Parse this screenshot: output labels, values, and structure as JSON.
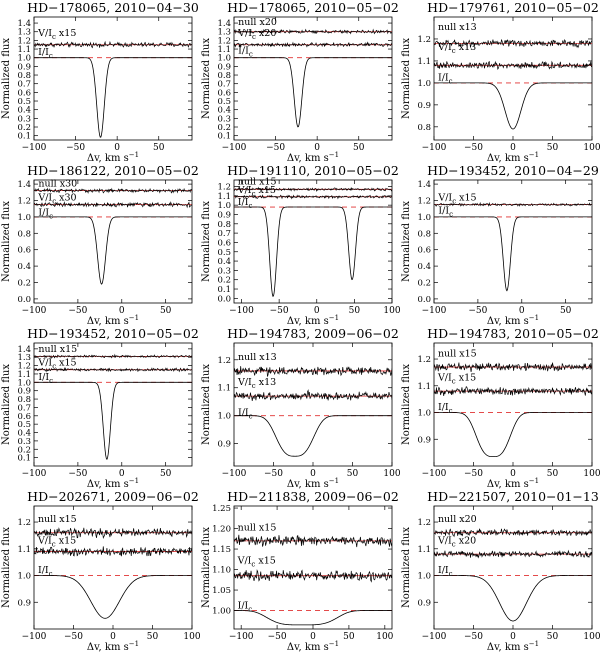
{
  "figure": {
    "ylabel": "Normalized flux",
    "xlabel_main": "Δv, km s",
    "xlabel_exp": "−1"
  },
  "chart_data": [
    {
      "type": "line",
      "title": "HD−178065, 2010−04−30",
      "xlim": [
        -100,
        90
      ],
      "ylim": [
        0.05,
        1.47
      ],
      "xticks": [
        -100,
        -50,
        0,
        50
      ],
      "yticks": [
        0.1,
        0.2,
        0.3,
        0.4,
        0.5,
        0.6,
        0.7,
        0.8,
        0.9,
        1.0,
        1.1,
        1.2,
        1.3,
        1.4
      ],
      "labels": [
        {
          "text": "V/I",
          "sub": "c",
          "suffix": " x15",
          "x": -95,
          "y": 1.25
        },
        {
          "text": "I/I",
          "sub": "c",
          "suffix": "",
          "x": -95,
          "y": 1.03
        }
      ],
      "series": [
        {
          "role": "stokesV",
          "level": 1.15,
          "noise": 0.022
        },
        {
          "role": "intensity",
          "continuum": 1.0,
          "center": -20,
          "depth": 0.92,
          "width": 4.5
        }
      ]
    },
    {
      "type": "line",
      "title": "HD−178065, 2010−05−02",
      "xlim": [
        -100,
        90
      ],
      "ylim": [
        0.05,
        1.47
      ],
      "xticks": [
        -100,
        -50,
        0,
        50
      ],
      "yticks": [
        0.1,
        0.2,
        0.3,
        0.4,
        0.5,
        0.6,
        0.7,
        0.8,
        0.9,
        1.0,
        1.1,
        1.2,
        1.3,
        1.4
      ],
      "labels": [
        {
          "text": "null x20",
          "sub": "",
          "suffix": "",
          "x": -95,
          "y": 1.38
        },
        {
          "text": "V/I",
          "sub": "c",
          "suffix": " x20",
          "x": -95,
          "y": 1.25
        },
        {
          "text": "I/I",
          "sub": "c",
          "suffix": "",
          "x": -95,
          "y": 1.05
        }
      ],
      "series": [
        {
          "role": "null",
          "level": 1.3,
          "noise": 0.016
        },
        {
          "role": "stokesV",
          "level": 1.15,
          "noise": 0.018
        },
        {
          "role": "intensity",
          "continuum": 1.0,
          "center": -23,
          "depth": 0.8,
          "width": 4.5
        }
      ]
    },
    {
      "type": "line",
      "title": "HD−179761, 2010−05−02",
      "xlim": [
        -100,
        100
      ],
      "ylim": [
        0.74,
        1.3
      ],
      "xticks": [
        -100,
        -50,
        0,
        50,
        100
      ],
      "yticks": [
        0.8,
        0.9,
        1.0,
        1.1,
        1.2
      ],
      "labels": [
        {
          "text": "null x13",
          "sub": "",
          "suffix": "",
          "x": -95,
          "y": 1.24
        },
        {
          "text": "V/I",
          "sub": "c",
          "suffix": " x13",
          "x": -95,
          "y": 1.15
        },
        {
          "text": "I/I",
          "sub": "c",
          "suffix": "",
          "x": -95,
          "y": 1.01
        }
      ],
      "series": [
        {
          "role": "null",
          "level": 1.18,
          "noise": 0.013
        },
        {
          "role": "stokesV",
          "level": 1.08,
          "noise": 0.014
        },
        {
          "role": "intensity",
          "continuum": 1.0,
          "center": 0,
          "depth": 0.21,
          "width": 10
        }
      ]
    },
    {
      "type": "line",
      "title": "HD−186122, 2010−05−02",
      "xlim": [
        -100,
        80
      ],
      "ylim": [
        -0.05,
        1.45
      ],
      "xticks": [
        -100,
        -50,
        0,
        50
      ],
      "yticks": [
        0.0,
        0.2,
        0.4,
        0.6,
        0.8,
        1.0,
        1.2,
        1.4
      ],
      "labels": [
        {
          "text": "null x30",
          "sub": "",
          "suffix": "",
          "x": -95,
          "y": 1.37
        },
        {
          "text": "V/I",
          "sub": "c",
          "suffix": " x30",
          "x": -95,
          "y": 1.2
        },
        {
          "text": "I/I",
          "sub": "c",
          "suffix": "",
          "x": -95,
          "y": 1.02
        }
      ],
      "series": [
        {
          "role": "null",
          "level": 1.32,
          "noise": 0.018
        },
        {
          "role": "stokesV",
          "level": 1.15,
          "noise": 0.02
        },
        {
          "role": "intensity",
          "continuum": 1.0,
          "center": -23,
          "depth": 0.82,
          "width": 4.5
        }
      ]
    },
    {
      "type": "line",
      "title": "HD−191110, 2010−05−02",
      "xlim": [
        -110,
        100
      ],
      "ylim": [
        -0.05,
        1.27
      ],
      "xticks": [
        -100,
        -50,
        0,
        50,
        100
      ],
      "yticks": [
        0.0,
        0.1,
        0.2,
        0.3,
        0.4,
        0.5,
        0.6,
        0.7,
        0.8,
        0.9,
        1.0,
        1.1,
        1.2
      ],
      "labels": [
        {
          "text": "null x15",
          "sub": "",
          "suffix": "",
          "x": -105,
          "y": 1.22
        },
        {
          "text": "V/I",
          "sub": "c",
          "suffix": " x15",
          "x": -105,
          "y": 1.13
        },
        {
          "text": "I/I",
          "sub": "c",
          "suffix": "",
          "x": -105,
          "y": 1.0
        }
      ],
      "series": [
        {
          "role": "null",
          "level": 1.17,
          "noise": 0.012
        },
        {
          "role": "stokesV",
          "level": 1.09,
          "noise": 0.012
        },
        {
          "role": "intensity",
          "continuum": 0.98,
          "center": -58,
          "depth": 0.96,
          "width": 4.5,
          "center2": 47,
          "depth2": 0.78,
          "width2": 4.5
        }
      ]
    },
    {
      "type": "line",
      "title": "HD−193452, 2010−04−29",
      "xlim": [
        -100,
        80
      ],
      "ylim": [
        -0.05,
        1.45
      ],
      "xticks": [
        -100,
        -50,
        0,
        50
      ],
      "yticks": [
        0.0,
        0.2,
        0.4,
        0.6,
        0.8,
        1.0,
        1.2,
        1.4
      ],
      "labels": [
        {
          "text": "V/I",
          "sub": "c",
          "suffix": " x15",
          "x": -95,
          "y": 1.2
        },
        {
          "text": "I/I",
          "sub": "c",
          "suffix": "",
          "x": -95,
          "y": 1.04
        }
      ],
      "series": [
        {
          "role": "stokesV",
          "level": 1.15,
          "noise": 0.012
        },
        {
          "role": "intensity",
          "continuum": 1.0,
          "center": -17,
          "depth": 0.9,
          "width": 4
        }
      ]
    },
    {
      "type": "line",
      "title": "HD−193452, 2010−05−02",
      "xlim": [
        -100,
        80
      ],
      "ylim": [
        0.0,
        1.47
      ],
      "xticks": [
        -100,
        -50,
        0,
        50
      ],
      "yticks": [
        0.1,
        0.2,
        0.3,
        0.4,
        0.5,
        0.6,
        0.7,
        0.8,
        0.9,
        1.0,
        1.1,
        1.2,
        1.3,
        1.4
      ],
      "labels": [
        {
          "text": "null x15",
          "sub": "",
          "suffix": "",
          "x": -95,
          "y": 1.36
        },
        {
          "text": "V/I",
          "sub": "c",
          "suffix": " x15",
          "x": -95,
          "y": 1.2
        },
        {
          "text": "I/I",
          "sub": "c",
          "suffix": "",
          "x": -95,
          "y": 1.03
        }
      ],
      "series": [
        {
          "role": "null",
          "level": 1.31,
          "noise": 0.012
        },
        {
          "role": "stokesV",
          "level": 1.15,
          "noise": 0.014
        },
        {
          "role": "intensity",
          "continuum": 1.0,
          "center": -17,
          "depth": 0.92,
          "width": 4
        }
      ]
    },
    {
      "type": "line",
      "title": "HD−194783, 2009−06−02",
      "xlim": [
        -100,
        100
      ],
      "ylim": [
        0.82,
        1.26
      ],
      "xticks": [
        -100,
        -50,
        0,
        50,
        100
      ],
      "yticks": [
        0.9,
        1.0,
        1.1,
        1.2
      ],
      "labels": [
        {
          "text": "null x13",
          "sub": "",
          "suffix": "",
          "x": -95,
          "y": 1.2
        },
        {
          "text": "V/I",
          "sub": "c",
          "suffix": " x13",
          "x": -95,
          "y": 1.11
        },
        {
          "text": "I/I",
          "sub": "c",
          "suffix": "",
          "x": -95,
          "y": 1.0
        }
      ],
      "series": [
        {
          "role": "null",
          "level": 1.16,
          "noise": 0.012
        },
        {
          "role": "stokesV",
          "level": 1.07,
          "noise": 0.012
        },
        {
          "role": "intensity",
          "continuum": 1.0,
          "center": -23,
          "depth": 0.145,
          "width": 22,
          "power": 3
        }
      ]
    },
    {
      "type": "line",
      "title": "HD−194783, 2010−05−02",
      "xlim": [
        -100,
        100
      ],
      "ylim": [
        0.8,
        1.26
      ],
      "xticks": [
        -100,
        -50,
        0,
        50,
        100
      ],
      "yticks": [
        0.9,
        1.0,
        1.1,
        1.2
      ],
      "labels": [
        {
          "text": "null x15",
          "sub": "",
          "suffix": "",
          "x": -95,
          "y": 1.21
        },
        {
          "text": "V/I",
          "sub": "c",
          "suffix": " x15",
          "x": -95,
          "y": 1.12
        },
        {
          "text": "I/I",
          "sub": "c",
          "suffix": "",
          "x": -95,
          "y": 1.01
        }
      ],
      "series": [
        {
          "role": "null",
          "level": 1.17,
          "noise": 0.012
        },
        {
          "role": "stokesV",
          "level": 1.08,
          "noise": 0.012
        },
        {
          "role": "intensity",
          "continuum": 1.0,
          "center": -25,
          "depth": 0.165,
          "width": 20,
          "power": 3
        }
      ]
    },
    {
      "type": "line",
      "title": "HD−202671, 2009−06−02",
      "xlim": [
        -100,
        100
      ],
      "ylim": [
        0.8,
        1.26
      ],
      "xticks": [
        -100,
        -50,
        0,
        50,
        100
      ],
      "yticks": [
        0.9,
        1.0,
        1.1,
        1.2
      ],
      "labels": [
        {
          "text": "null x15",
          "sub": "",
          "suffix": "",
          "x": -95,
          "y": 1.2
        },
        {
          "text": "V/I",
          "sub": "c",
          "suffix": " x15",
          "x": -95,
          "y": 1.12
        },
        {
          "text": "I/I",
          "sub": "c",
          "suffix": "",
          "x": -95,
          "y": 1.01
        }
      ],
      "series": [
        {
          "role": "null",
          "level": 1.16,
          "noise": 0.013
        },
        {
          "role": "stokesV",
          "level": 1.09,
          "noise": 0.013
        },
        {
          "role": "intensity",
          "continuum": 1.0,
          "center": -10,
          "depth": 0.16,
          "width": 18
        }
      ]
    },
    {
      "type": "line",
      "title": "HD−211838, 2009−06−02",
      "xlim": [
        -110,
        110
      ],
      "ylim": [
        0.955,
        1.255
      ],
      "xticks": [
        -100,
        -50,
        0,
        50,
        100
      ],
      "yticks": [
        1.0,
        1.05,
        1.1,
        1.15,
        1.2,
        1.25
      ],
      "labels": [
        {
          "text": "null x15",
          "sub": "",
          "suffix": "",
          "x": -105,
          "y": 1.195
        },
        {
          "text": "V/I",
          "sub": "c",
          "suffix": " x15",
          "x": -105,
          "y": 1.115
        },
        {
          "text": "I/I",
          "sub": "c",
          "suffix": "",
          "x": -105,
          "y": 1.005
        }
      ],
      "series": [
        {
          "role": "null",
          "level": 1.17,
          "noise": 0.01
        },
        {
          "role": "stokesV",
          "level": 1.085,
          "noise": 0.01
        },
        {
          "role": "intensity",
          "continuum": 1.0,
          "center": -15,
          "depth": 0.035,
          "width": 45,
          "power": 4
        }
      ]
    },
    {
      "type": "line",
      "title": "HD−221507, 2010−01−13",
      "xlim": [
        -100,
        100
      ],
      "ylim": [
        0.8,
        1.26
      ],
      "xticks": [
        -100,
        -50,
        0,
        50,
        100
      ],
      "yticks": [
        0.9,
        1.0,
        1.1,
        1.2
      ],
      "labels": [
        {
          "text": "null x20",
          "sub": "",
          "suffix": "",
          "x": -95,
          "y": 1.2
        },
        {
          "text": "V/I",
          "sub": "c",
          "suffix": " x20",
          "x": -95,
          "y": 1.12
        },
        {
          "text": "I/I",
          "sub": "c",
          "suffix": "",
          "x": -95,
          "y": 1.01
        }
      ],
      "series": [
        {
          "role": "null",
          "level": 1.16,
          "noise": 0.01
        },
        {
          "role": "stokesV",
          "level": 1.08,
          "noise": 0.01
        },
        {
          "role": "intensity",
          "continuum": 1.0,
          "center": 0,
          "depth": 0.17,
          "width": 17
        }
      ]
    }
  ]
}
